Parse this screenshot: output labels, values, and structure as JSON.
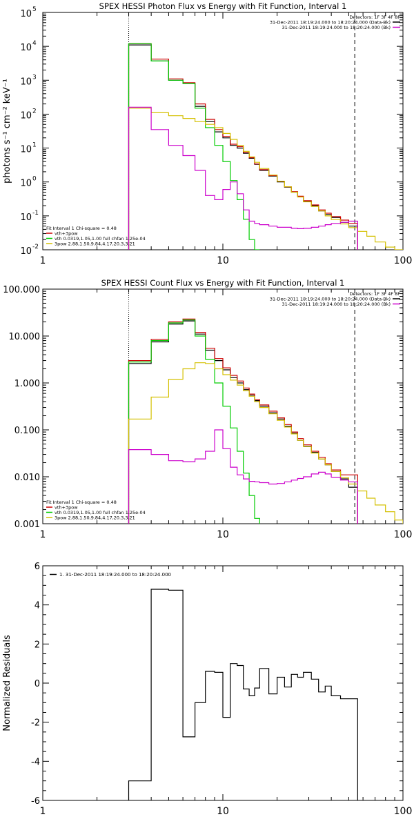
{
  "chart_data": [
    {
      "type": "line",
      "title": "SPEX HESSI Photon Flux vs Energy with Fit Function, Interval 1",
      "xlabel": "",
      "ylabel": "photons s⁻¹ cm⁻² keV⁻¹",
      "xscale": "log",
      "yscale": "log",
      "xlim": [
        1,
        100
      ],
      "ylim": [
        0.01,
        100000
      ],
      "xticks": [
        {
          "v": 1,
          "label": "1"
        },
        {
          "v": 10,
          "label": "10"
        },
        {
          "v": 100,
          "label": "100"
        }
      ],
      "yticks": [
        {
          "v": 0.01,
          "label": "10",
          "exp": "-2"
        },
        {
          "v": 0.1,
          "label": "10",
          "exp": "-1"
        },
        {
          "v": 1,
          "label": "10",
          "exp": "0"
        },
        {
          "v": 10,
          "label": "10",
          "exp": "1"
        },
        {
          "v": 100,
          "label": "10",
          "exp": "2"
        },
        {
          "v": 1000,
          "label": "10",
          "exp": "3"
        },
        {
          "v": 10000,
          "label": "10",
          "exp": "4"
        },
        {
          "v": 100000,
          "label": "10",
          "exp": "5"
        }
      ],
      "vlines": [
        {
          "x": 3.0,
          "style": "dotted"
        },
        {
          "x": 54,
          "style": "dashed"
        }
      ],
      "header": [
        "Detectors: 1F 3F 4F 8F",
        "31-Dec-2011 18:19:24.000 to 18:20:24.000 (Data-Bk)",
        "31-Dec-2011 18:19:24.000 to 18:20:24.000 (Bk)"
      ],
      "header_colors": [
        "#000000",
        "#000000",
        "#cc00cc"
      ],
      "legend": [
        "Fit Interval 1   Chi-square = 0.48",
        "vth+3pow",
        "vth 0.0319,1.05,1.00  full chfan 1.25e-04",
        "3pow 2.88,1.50,9.84,4.17,20.3,3.21"
      ],
      "legend_colors": [
        "#000000",
        "#cc0000",
        "#00cc00",
        "#d4c000"
      ],
      "bin_edges": [
        3.0,
        4.0,
        5.0,
        6.0,
        7.0,
        8.0,
        9.0,
        10.0,
        11.0,
        12.0,
        13.0,
        14.0,
        15.0,
        16.0,
        18.0,
        20.0,
        22.0,
        24.0,
        26.0,
        28.0,
        31.0,
        34.0,
        37.0,
        40.0,
        45.0,
        50.0,
        56.0,
        63.0,
        70.0,
        80.0,
        90.0,
        100.0
      ],
      "series": [
        {
          "color": "#000000",
          "values": [
            11000,
            3700,
            1000,
            800,
            170,
            60,
            30,
            20,
            12,
            10,
            7,
            5,
            3.3,
            2.2,
            1.5,
            1.0,
            0.7,
            0.5,
            0.37,
            0.27,
            0.2,
            0.14,
            0.11,
            0.09,
            0.065,
            0.05,
            null,
            null,
            null,
            null,
            null
          ]
        },
        {
          "color": "#cc0000",
          "values": [
            12000,
            4200,
            1100,
            850,
            200,
            70,
            35,
            22,
            13,
            11,
            7.5,
            5.2,
            3.4,
            2.3,
            1.55,
            1.05,
            0.72,
            0.52,
            0.38,
            0.28,
            0.21,
            0.15,
            0.12,
            0.095,
            0.075,
            0.06,
            null,
            null,
            null,
            null,
            null
          ]
        },
        {
          "color": "#00cc00",
          "values": [
            12000,
            3700,
            1000,
            800,
            150,
            40,
            12,
            4,
            1.1,
            0.3,
            0.08,
            0.02,
            0.01,
            null,
            null,
            null,
            null,
            null,
            null,
            null,
            null,
            null,
            null,
            null,
            null,
            null,
            null,
            null,
            null,
            null,
            null
          ]
        },
        {
          "color": "#d4c000",
          "values": [
            150,
            110,
            90,
            75,
            60,
            50,
            40,
            27,
            18,
            12,
            8,
            5.5,
            3.8,
            2.5,
            1.6,
            1.05,
            0.72,
            0.5,
            0.36,
            0.26,
            0.19,
            0.14,
            0.1,
            0.078,
            0.058,
            0.045,
            0.035,
            0.025,
            0.017,
            0.012,
            0.009
          ]
        },
        {
          "color": "#cc00cc",
          "values": [
            160,
            35,
            12,
            6,
            2.2,
            0.4,
            0.3,
            0.6,
            1.0,
            0.45,
            0.15,
            0.07,
            0.06,
            0.055,
            0.05,
            0.046,
            0.046,
            0.043,
            0.042,
            0.043,
            0.046,
            0.05,
            0.055,
            0.06,
            0.065,
            0.07,
            null,
            null,
            null,
            null,
            null
          ]
        }
      ]
    },
    {
      "type": "line",
      "title": "SPEX HESSI Count Flux vs Energy with Fit Function, Interval 1",
      "xlabel": "",
      "ylabel": "",
      "xscale": "log",
      "yscale": "log",
      "xlim": [
        1,
        100
      ],
      "ylim": [
        0.001,
        100
      ],
      "xticks": [
        {
          "v": 1,
          "label": "1"
        },
        {
          "v": 10,
          "label": "10"
        },
        {
          "v": 100,
          "label": "100"
        }
      ],
      "yticks": [
        {
          "v": 0.001,
          "label": "0.001"
        },
        {
          "v": 0.01,
          "label": "0.010"
        },
        {
          "v": 0.1,
          "label": "0.100"
        },
        {
          "v": 1,
          "label": "1.000"
        },
        {
          "v": 10,
          "label": "10.000"
        },
        {
          "v": 100,
          "label": "100.000"
        }
      ],
      "vlines": [
        {
          "x": 3.0,
          "style": "dotted"
        },
        {
          "x": 54,
          "style": "dashed"
        }
      ],
      "header": [
        "Detectors: 1F 3F 4F 8F",
        "31-Dec-2011 18:19:24.000 to 18:20:24.000 (Data-Bk)",
        "31-Dec-2011 18:19:24.000 to 18:20:24.000 (Bk)"
      ],
      "header_colors": [
        "#000000",
        "#000000",
        "#cc00cc"
      ],
      "legend": [
        "Fit Interval 1   Chi-square = 0.48",
        "vth+3pow",
        "vth 0.0319,1.05,1.00  full chfan 1.25e-04",
        "3pow 2.88,1.50,9.84,4.17,20.3,3.21"
      ],
      "legend_colors": [
        "#000000",
        "#cc0000",
        "#00cc00",
        "#d4c000"
      ],
      "bin_edges": [
        3.0,
        4.0,
        5.0,
        6.0,
        7.0,
        8.0,
        9.0,
        10.0,
        11.0,
        12.0,
        13.0,
        14.0,
        15.0,
        16.0,
        18.0,
        20.0,
        22.0,
        24.0,
        26.0,
        28.0,
        31.0,
        34.0,
        37.0,
        40.0,
        45.0,
        50.0,
        56.0,
        63.0,
        70.0,
        80.0,
        90.0,
        100.0
      ],
      "series": [
        {
          "color": "#000000",
          "values": [
            2.6,
            7.5,
            18,
            21,
            11,
            5.0,
            3.0,
            1.9,
            1.3,
            1.0,
            0.72,
            0.55,
            0.42,
            0.32,
            0.23,
            0.17,
            0.12,
            0.085,
            0.06,
            0.045,
            0.033,
            0.024,
            0.018,
            0.013,
            0.009,
            0.006,
            null,
            null,
            null,
            null,
            null
          ]
        },
        {
          "color": "#cc0000",
          "values": [
            3.0,
            8.5,
            20,
            23,
            12,
            5.5,
            3.3,
            2.1,
            1.45,
            1.1,
            0.78,
            0.58,
            0.44,
            0.34,
            0.25,
            0.18,
            0.13,
            0.09,
            0.065,
            0.048,
            0.035,
            0.026,
            0.019,
            0.014,
            0.011,
            0.011,
            null,
            null,
            null,
            null,
            null
          ]
        },
        {
          "color": "#00cc00",
          "values": [
            2.8,
            8.0,
            19,
            22,
            10,
            3.2,
            1.0,
            0.32,
            0.11,
            0.035,
            0.012,
            0.004,
            0.0013,
            null,
            null,
            null,
            null,
            null,
            null,
            null,
            null,
            null,
            null,
            null,
            null,
            null,
            null,
            null,
            null,
            null,
            null
          ]
        },
        {
          "color": "#d4c000",
          "values": [
            0.17,
            0.5,
            1.2,
            2.0,
            2.7,
            2.6,
            2.0,
            1.5,
            1.15,
            0.9,
            0.68,
            0.52,
            0.4,
            0.3,
            0.22,
            0.16,
            0.115,
            0.082,
            0.06,
            0.044,
            0.032,
            0.024,
            0.018,
            0.013,
            0.0095,
            0.007,
            0.005,
            0.0035,
            0.0025,
            0.0018,
            0.0012
          ]
        },
        {
          "color": "#cc00cc",
          "values": [
            0.038,
            0.03,
            0.022,
            0.021,
            0.024,
            0.035,
            0.1,
            0.04,
            0.016,
            0.011,
            0.009,
            0.008,
            0.0078,
            0.0075,
            0.007,
            0.0072,
            0.0078,
            0.0085,
            0.0092,
            0.01,
            0.0115,
            0.0125,
            0.0115,
            0.0098,
            0.0085,
            0.0078,
            null,
            null,
            null,
            null,
            null
          ]
        }
      ]
    },
    {
      "type": "line",
      "title": "",
      "xlabel": "",
      "ylabel": "Normalized Residuals",
      "xscale": "log",
      "yscale": "linear",
      "xlim": [
        1,
        100
      ],
      "ylim": [
        -6,
        6
      ],
      "xticks": [
        {
          "v": 1,
          "label": "1"
        },
        {
          "v": 10,
          "label": "10"
        },
        {
          "v": 100,
          "label": "100"
        }
      ],
      "yticks": [
        {
          "v": -6,
          "label": "-6"
        },
        {
          "v": -4,
          "label": "-4"
        },
        {
          "v": -2,
          "label": "-2"
        },
        {
          "v": 0,
          "label": "0"
        },
        {
          "v": 2,
          "label": "2"
        },
        {
          "v": 4,
          "label": "4"
        },
        {
          "v": 6,
          "label": "6"
        }
      ],
      "legend": [
        "1. 31-Dec-2011 18:19:24.000 to 18:20:24.000"
      ],
      "legend_colors": [
        "#000000"
      ],
      "bin_edges": [
        3.0,
        4.0,
        5.0,
        6.0,
        7.0,
        8.0,
        9.0,
        10.0,
        11.0,
        12.0,
        13.0,
        14.0,
        15.0,
        16.0,
        18.0,
        20.0,
        22.0,
        24.0,
        26.0,
        28.0,
        31.0,
        34.0,
        37.0,
        40.0,
        45.0,
        50.0,
        56.0
      ],
      "series": [
        {
          "color": "#000000",
          "values": [
            -5.0,
            4.8,
            4.75,
            -2.75,
            -1.0,
            0.6,
            0.55,
            -1.75,
            1.0,
            0.9,
            -0.3,
            -0.65,
            -0.25,
            0.75,
            -0.55,
            0.3,
            -0.2,
            0.45,
            0.3,
            0.55,
            0.2,
            -0.45,
            -0.15,
            -0.65,
            -0.8,
            -0.8
          ]
        }
      ]
    }
  ]
}
